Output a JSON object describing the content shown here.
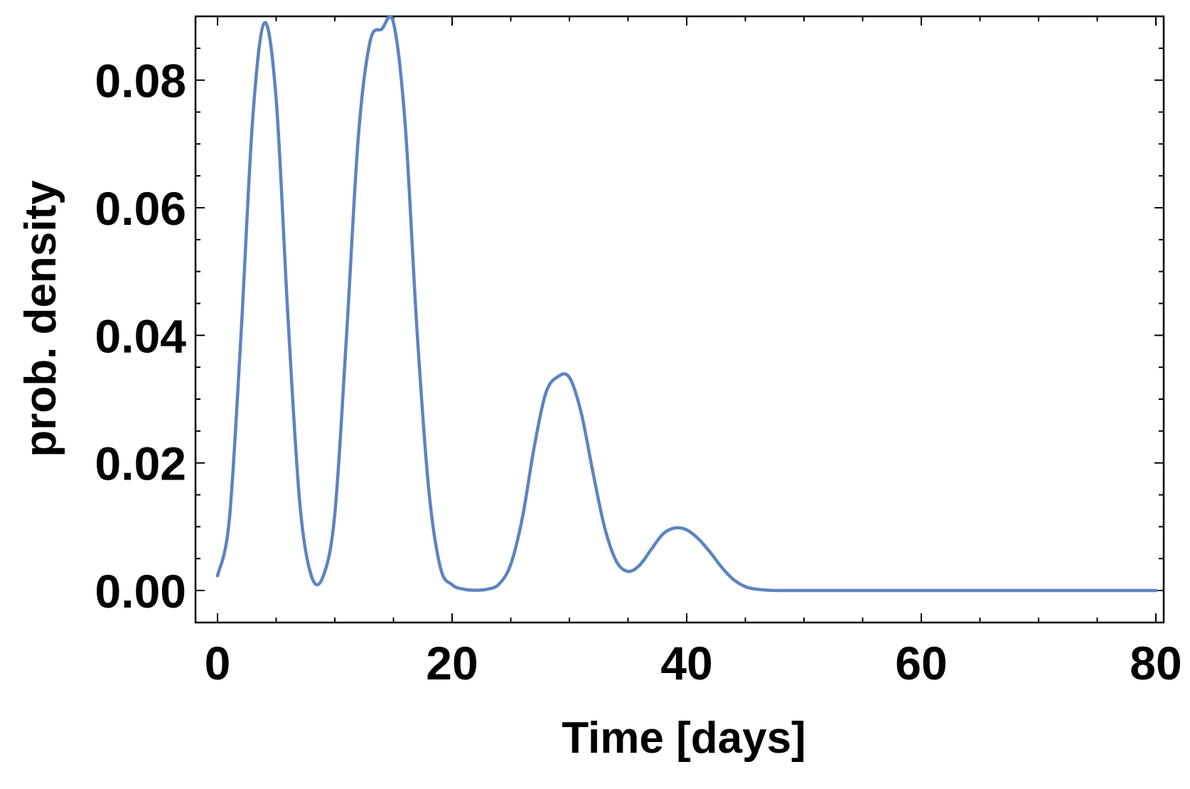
{
  "chart_data": {
    "type": "line",
    "title": "",
    "xlabel": "Time [days]",
    "ylabel": "prob. density",
    "xlim": [
      0,
      80
    ],
    "ylim": [
      0,
      0.09
    ],
    "xticks": [
      0,
      20,
      40,
      60,
      80
    ],
    "xtick_labels": [
      "0",
      "20",
      "40",
      "60",
      "80"
    ],
    "yticks": [
      0,
      0.02,
      0.04,
      0.06,
      0.08
    ],
    "ytick_labels": [
      "0.00",
      "0.02",
      "0.04",
      "0.06",
      "0.08"
    ],
    "grid": false,
    "series": [
      {
        "color": "#5b84c0",
        "x": [
          0,
          1,
          2,
          3,
          4,
          5,
          6,
          7,
          8,
          9,
          10,
          11,
          12,
          13,
          14,
          15,
          16,
          17,
          18,
          19,
          20,
          21,
          22,
          23,
          24,
          25,
          26,
          27,
          28,
          29,
          30,
          31,
          32,
          33,
          34,
          35,
          36,
          37,
          38,
          39,
          40,
          41,
          42,
          43,
          44,
          45,
          46,
          47,
          48,
          50,
          55,
          60,
          65,
          70,
          75,
          80
        ],
        "y": [
          0.0023,
          0.011,
          0.04,
          0.074,
          0.089,
          0.077,
          0.043,
          0.014,
          0.0023,
          0.0022,
          0.012,
          0.04,
          0.071,
          0.086,
          0.088,
          0.089,
          0.073,
          0.041,
          0.016,
          0.0036,
          0.0009,
          0.0002,
          5e-05,
          0.0002,
          0.001,
          0.0041,
          0.0115,
          0.0225,
          0.031,
          0.0335,
          0.0334,
          0.0279,
          0.0186,
          0.0099,
          0.0046,
          0.003,
          0.004,
          0.0065,
          0.0089,
          0.0098,
          0.0095,
          0.0081,
          0.006,
          0.0036,
          0.0017,
          0.0006,
          0.0002,
          5e-05,
          0.0,
          0.0,
          0.0,
          0.0,
          0.0,
          0.0,
          0.0,
          0.0
        ]
      }
    ]
  }
}
